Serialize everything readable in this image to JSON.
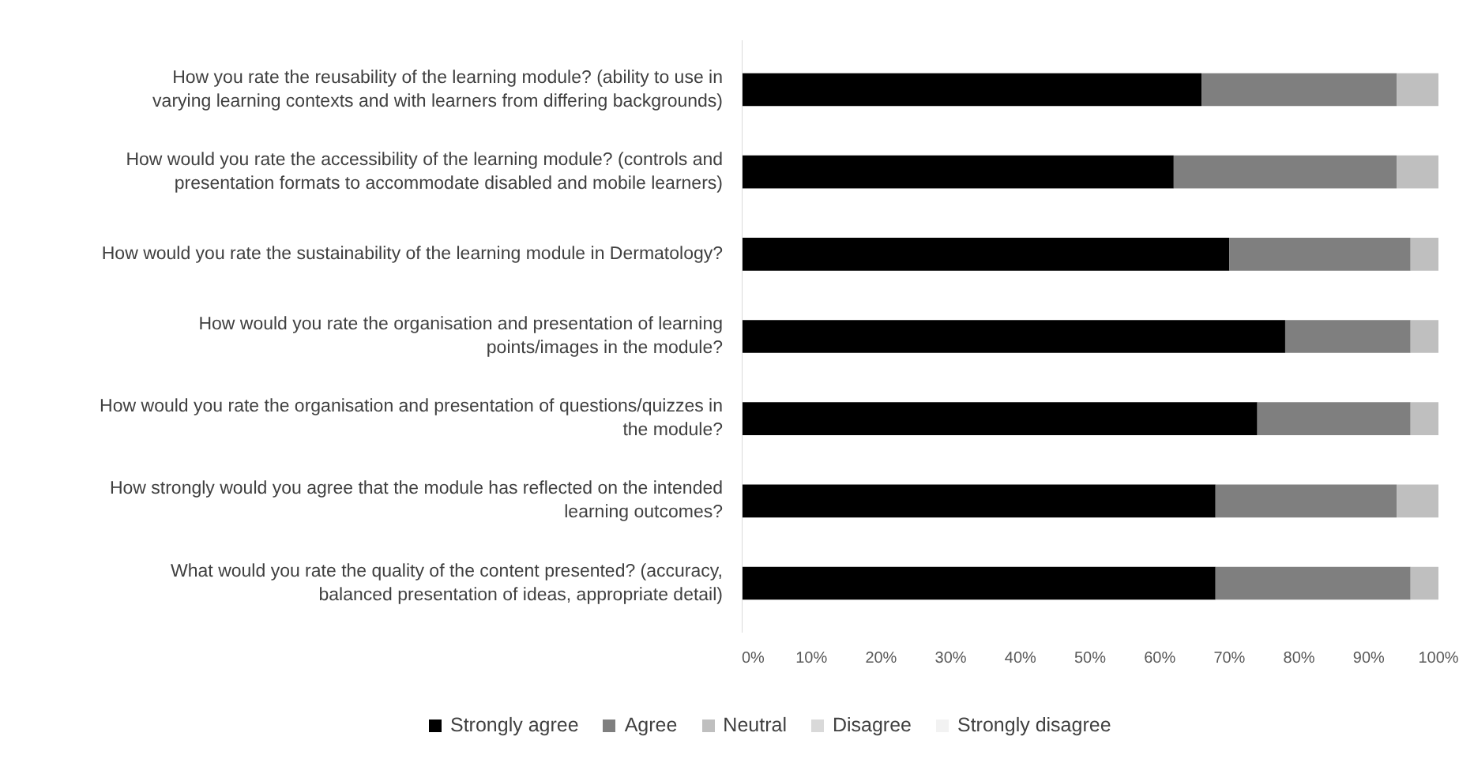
{
  "chart_data": {
    "type": "bar",
    "orientation": "horizontal",
    "stacked": true,
    "categories": [
      "How you rate the reusability of the learning module? (ability to use in varying learning contexts and with learners from differing backgrounds)",
      "How would you rate the accessibility of the learning module? (controls and presentation formats to accommodate disabled and mobile learners)",
      "How would you rate the sustainability of the learning module in Dermatology?",
      "How would you rate the organisation and presentation of learning points/images in the module?",
      "How would you rate the organisation and presentation of questions/quizzes in the module?",
      "How strongly would you agree that the module has reflected on the intended learning outcomes?",
      "What would you rate the quality of the content presented? (accuracy, balanced presentation of ideas, appropriate detail)"
    ],
    "series": [
      {
        "name": "Strongly agree",
        "color": "#000000",
        "values": [
          66,
          62,
          70,
          78,
          74,
          68,
          68
        ]
      },
      {
        "name": "Agree",
        "color": "#7f7f7f",
        "values": [
          28,
          32,
          26,
          18,
          22,
          26,
          28
        ]
      },
      {
        "name": "Neutral",
        "color": "#bfbfbf",
        "values": [
          6,
          6,
          4,
          4,
          4,
          6,
          4
        ]
      },
      {
        "name": "Disagree",
        "color": "#d9d9d9",
        "values": [
          0,
          0,
          0,
          0,
          0,
          0,
          0
        ]
      },
      {
        "name": "Strongly disagree",
        "color": "#f2f2f2",
        "values": [
          0,
          0,
          0,
          0,
          0,
          0,
          0
        ]
      }
    ],
    "xlim": [
      0,
      100
    ],
    "xticks": [
      {
        "value": 0,
        "label": "0%"
      },
      {
        "value": 10,
        "label": "10%"
      },
      {
        "value": 20,
        "label": "20%"
      },
      {
        "value": 30,
        "label": "30%"
      },
      {
        "value": 40,
        "label": "40%"
      },
      {
        "value": 50,
        "label": "50%"
      },
      {
        "value": 60,
        "label": "60%"
      },
      {
        "value": 70,
        "label": "70%"
      },
      {
        "value": 80,
        "label": "80%"
      },
      {
        "value": 90,
        "label": "90%"
      },
      {
        "value": 100,
        "label": "100%"
      }
    ],
    "grid": false,
    "legend": "bottom"
  }
}
